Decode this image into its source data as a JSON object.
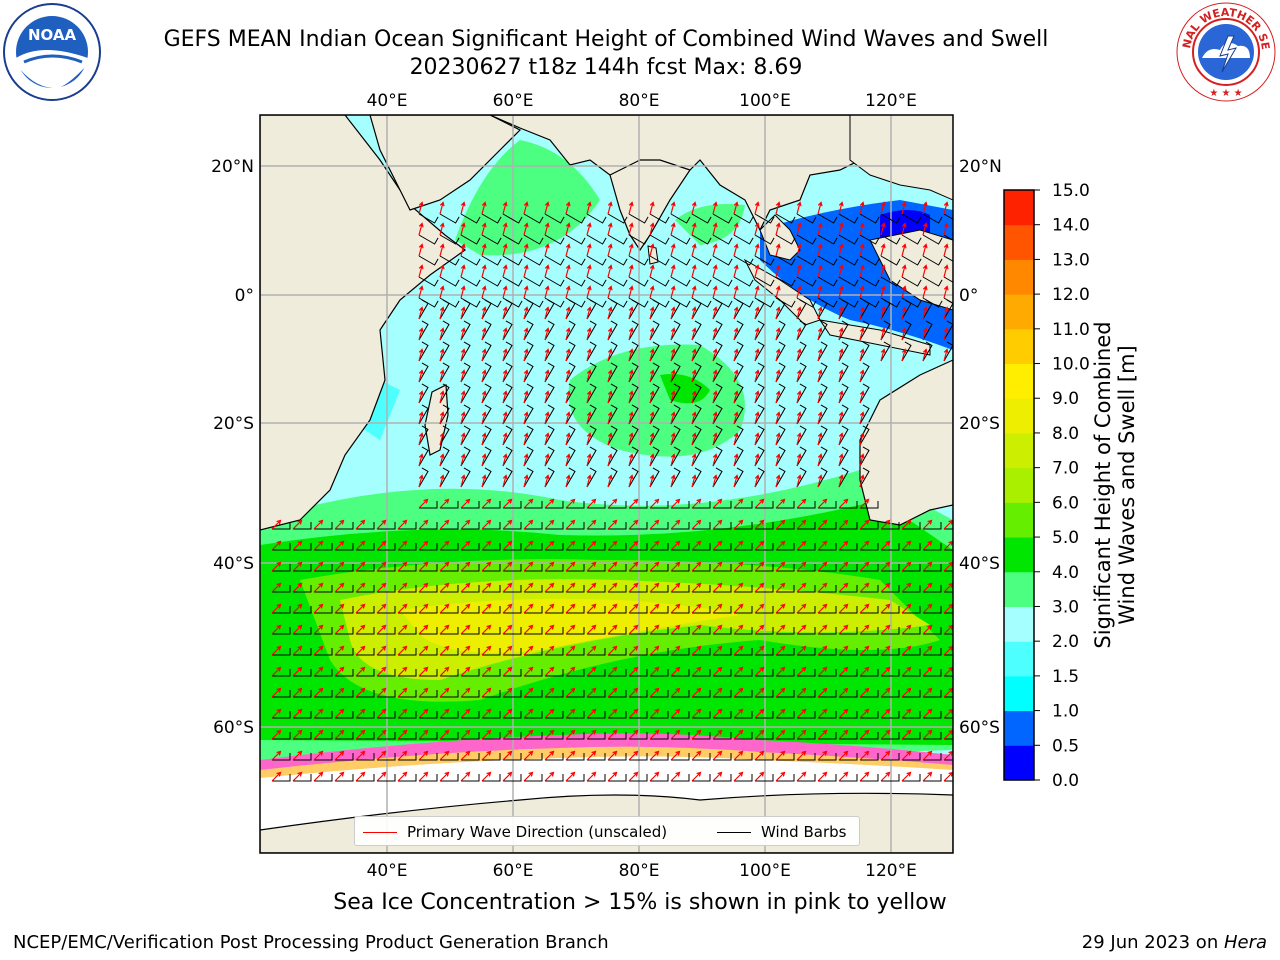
{
  "title": {
    "line1": "GEFS MEAN Indian Ocean Significant Height of Combined Wind Waves and Swell",
    "line2": "20230627 t18z 144h fcst   Max: 8.69"
  },
  "logos": {
    "left": {
      "icon": "noaa-logo",
      "text": "NOAA"
    },
    "right": {
      "icon": "nws-logo",
      "text": "NATIONAL WEATHER SERVICE"
    }
  },
  "map": {
    "lon_ticks": [
      "40°E",
      "60°E",
      "80°E",
      "100°E",
      "120°E"
    ],
    "lat_ticks": [
      "20°N",
      "0°",
      "20°S",
      "40°S",
      "60°S"
    ],
    "land_color": "#efecdc",
    "ice_color": "#ffffff"
  },
  "colorbar": {
    "label_line1": "Significant Height of Combined",
    "label_line2": "Wind Waves and Swell [m]",
    "ticks": [
      "0.0",
      "0.5",
      "1.0",
      "1.5",
      "2.0",
      "3.0",
      "4.0",
      "5.0",
      "6.0",
      "7.0",
      "8.0",
      "9.0",
      "10.0",
      "11.0",
      "12.0",
      "13.0",
      "14.0",
      "15.0"
    ],
    "colors": [
      "#0000ff",
      "#0066ff",
      "#00ffff",
      "#4dffff",
      "#a6ffff",
      "#4dff80",
      "#00e600",
      "#66ee00",
      "#aaee00",
      "#ccee00",
      "#eeee00",
      "#ffee00",
      "#ffcc00",
      "#ffaa00",
      "#ff8800",
      "#ff5500",
      "#ff2200"
    ]
  },
  "legend": {
    "wave_label": "Primary Wave Direction (unscaled)",
    "wave_color": "#ff0000",
    "wind_label": "Wind Barbs",
    "wind_color": "#000000"
  },
  "ice_note": "Sea Ice Concentration > 15% is shown in pink to yellow",
  "footer": {
    "left": "NCEP/EMC/Verification Post Processing Product Generation Branch",
    "right_date": "29 Jun 2023 on ",
    "right_host": "Hera"
  }
}
